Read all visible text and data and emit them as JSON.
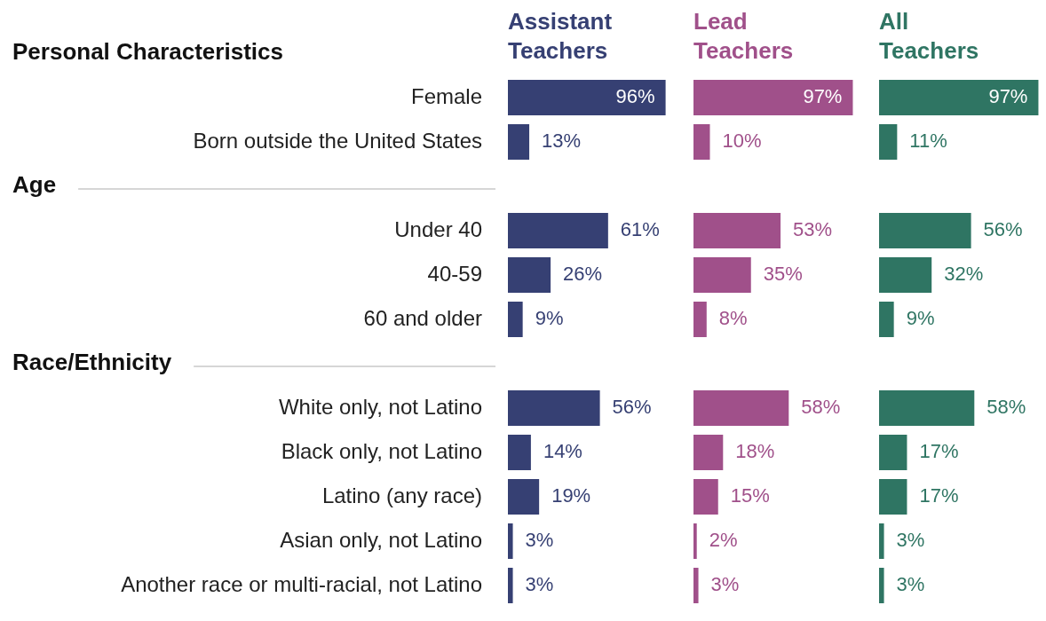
{
  "chart_data": [
    {
      "type": "bar",
      "orientation": "horizontal",
      "title": "Assistant Teachers",
      "color": "#364073",
      "tick_labels": "y",
      "annotations": [
        "Personal Characteristics",
        "Age",
        "Race/Ethnicity"
      ],
      "categories": [
        null,
        "Female",
        "Born outside the United States",
        null,
        "Under 40",
        "40-59",
        "60 and older",
        null,
        "White only, not Latino",
        "Black only, not Latino",
        "Latino (any race)",
        "Asian only, not Latino",
        "Another race or multi-racial, not Latino"
      ],
      "values": [
        null,
        96,
        13,
        null,
        61,
        26,
        9,
        null,
        56,
        14,
        19,
        3,
        3
      ],
      "value_labels": [
        null,
        "96%",
        "13%",
        null,
        "61%",
        "26%",
        "9%",
        null,
        "56%",
        "14%",
        "19%",
        "3%",
        "3%"
      ]
    },
    {
      "type": "bar",
      "orientation": "horizontal",
      "title": "Lead Teachers",
      "color": "#a0508a",
      "tick_labels": false,
      "values": [
        null,
        97,
        10,
        null,
        53,
        35,
        8,
        null,
        58,
        18,
        15,
        2,
        3
      ],
      "value_labels": [
        null,
        "97%",
        "10%",
        null,
        "53%",
        "35%",
        "8%",
        null,
        "58%",
        "18%",
        "15%",
        "2%",
        "3%"
      ]
    },
    {
      "type": "bar",
      "orientation": "horizontal",
      "title": "All Teachers",
      "color": "#2f7563",
      "tick_labels": false,
      "values": [
        null,
        97,
        11,
        null,
        56,
        32,
        9,
        null,
        58,
        17,
        17,
        3,
        3
      ],
      "value_labels": [
        null,
        "97%",
        "11%",
        null,
        "56%",
        "32%",
        "9%",
        null,
        "58%",
        "17%",
        "17%",
        "3%",
        "3%"
      ]
    }
  ]
}
